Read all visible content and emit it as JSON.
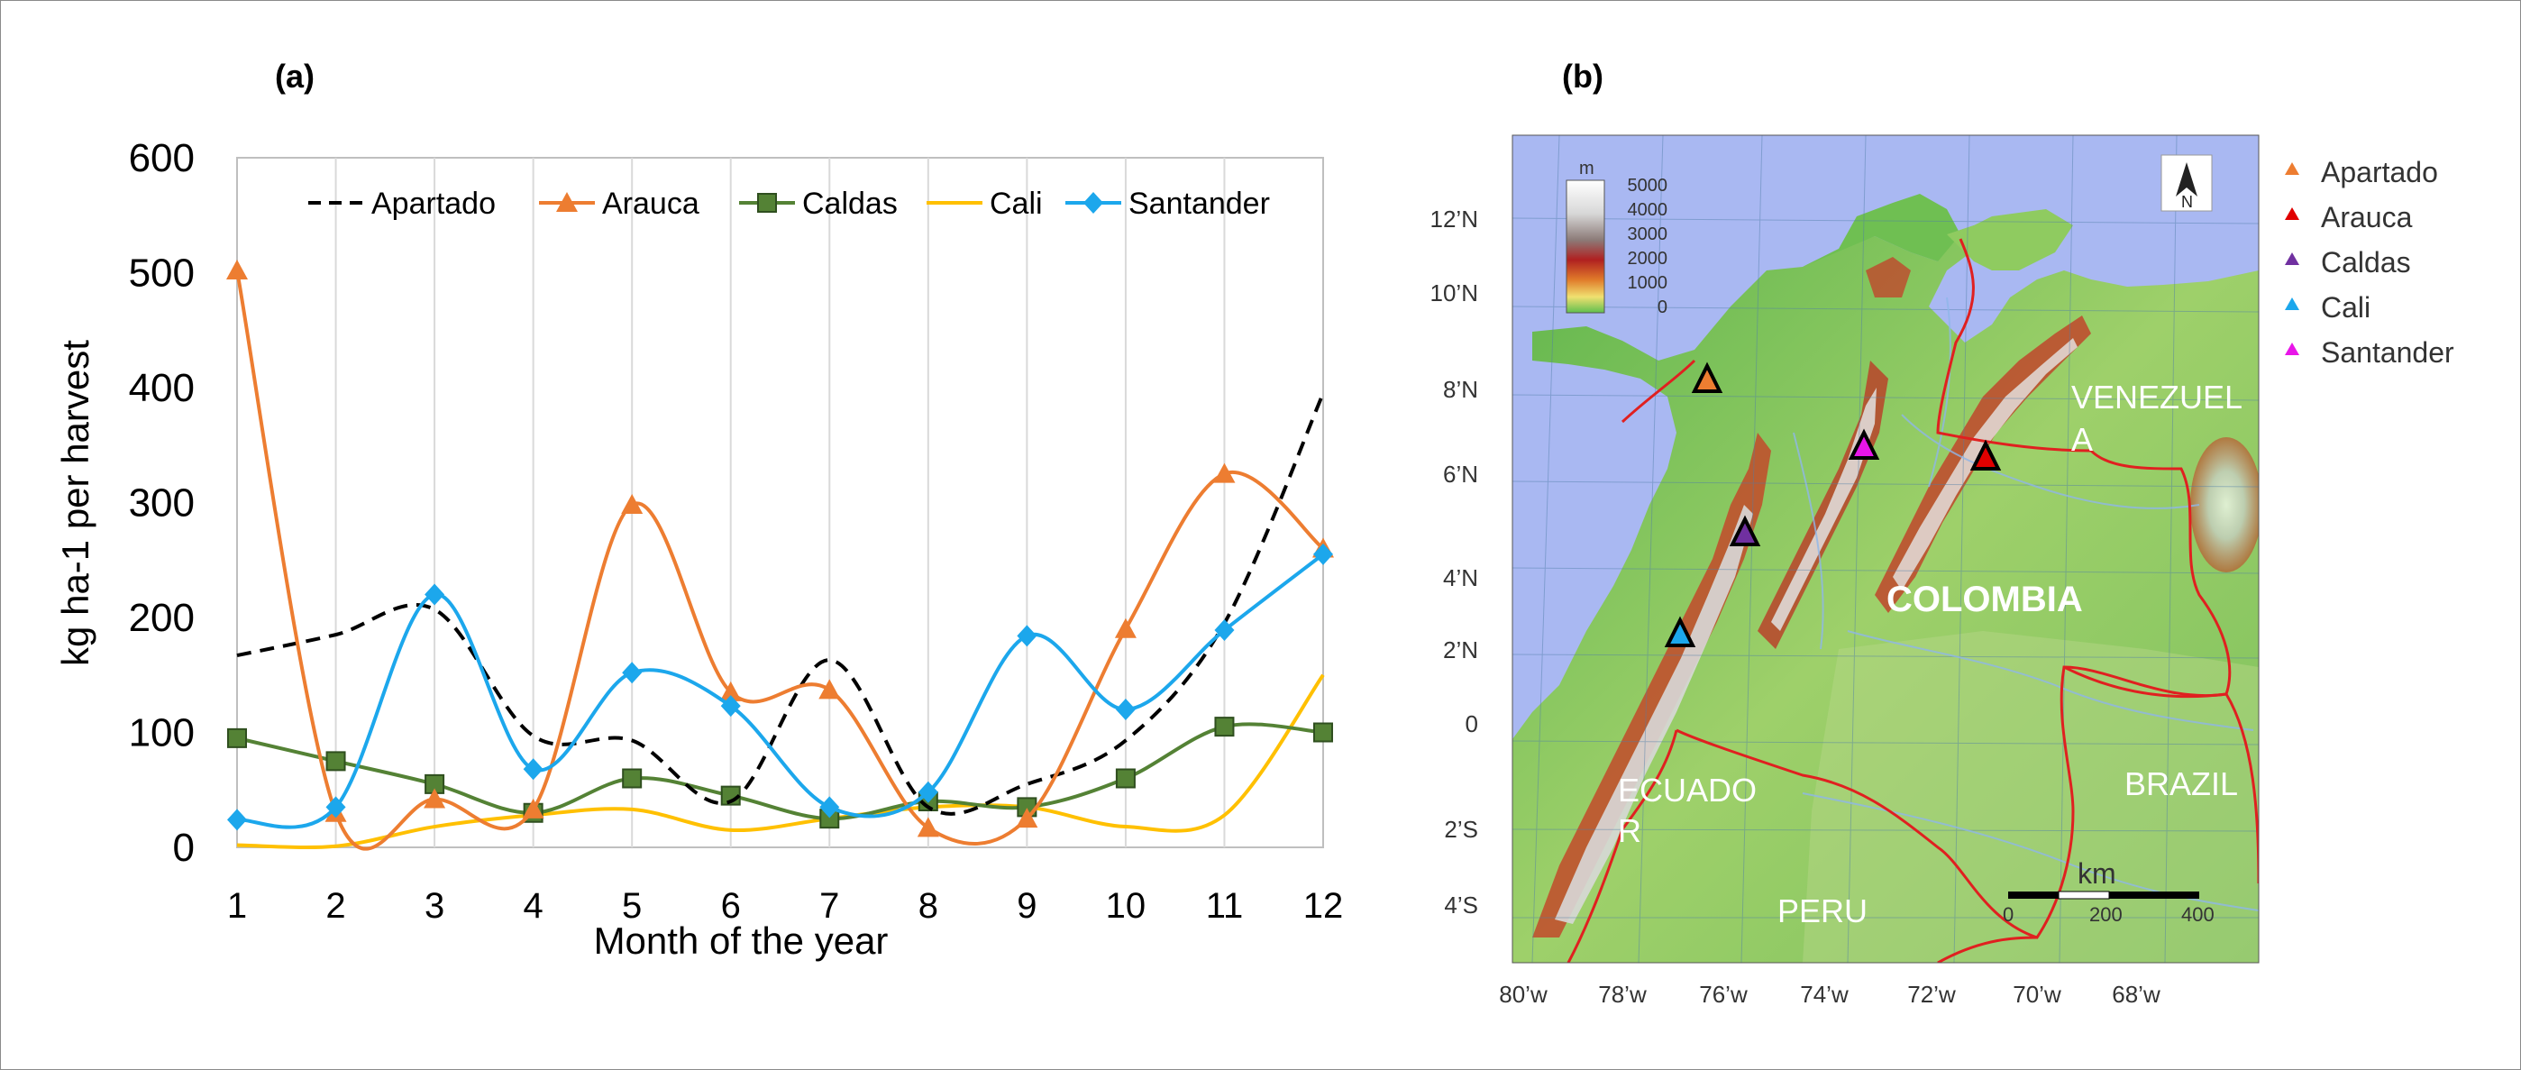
{
  "panel_a_label": "(a)",
  "panel_b_label": "(b)",
  "chart_data": {
    "type": "line",
    "title": "",
    "xlabel": "Month of the year",
    "ylabel": "kg ha-1 per harvest",
    "xlim": [
      1,
      12
    ],
    "ylim": [
      0,
      600
    ],
    "x": [
      1,
      2,
      3,
      4,
      5,
      6,
      7,
      8,
      9,
      10,
      11,
      12
    ],
    "x_ticks": [
      "1",
      "2",
      "3",
      "4",
      "5",
      "6",
      "7",
      "8",
      "9",
      "10",
      "11",
      "12"
    ],
    "y_ticks": [
      "0",
      "100",
      "200",
      "300",
      "400",
      "500",
      "600"
    ],
    "grid": "vertical",
    "legend_position": "top",
    "series": [
      {
        "name": "Apartado",
        "color": "#000000",
        "dash": "dashed",
        "marker": "none",
        "values": [
          167,
          185,
          207,
          97,
          93,
          40,
          163,
          35,
          55,
          93,
          195,
          395
        ]
      },
      {
        "name": "Arauca",
        "color": "#ED7D31",
        "dash": "solid",
        "marker": "triangle",
        "values": [
          502,
          30,
          42,
          33,
          298,
          135,
          137,
          17,
          25,
          190,
          325,
          260
        ]
      },
      {
        "name": "Caldas",
        "color": "#548235",
        "dash": "solid",
        "marker": "square",
        "values": [
          95,
          75,
          55,
          30,
          60,
          45,
          25,
          40,
          35,
          60,
          105,
          100
        ]
      },
      {
        "name": "Cali",
        "color": "#FFC000",
        "dash": "solid",
        "marker": "none",
        "values": [
          2,
          1,
          18,
          28,
          33,
          15,
          25,
          35,
          35,
          18,
          28,
          150
        ]
      },
      {
        "name": "Santander",
        "color": "#1CA7EC",
        "dash": "solid",
        "marker": "diamond",
        "values": [
          24,
          35,
          220,
          68,
          152,
          123,
          35,
          48,
          184,
          120,
          189,
          255
        ]
      }
    ]
  },
  "map": {
    "lat_ticks": [
      "12’N",
      "10’N",
      "8’N",
      "6’N",
      "4’N",
      "2’N",
      "0",
      "2’S",
      "4’S"
    ],
    "lon_ticks": [
      "80’w",
      "78’w",
      "76’w",
      "74’w",
      "72’w",
      "70’w",
      "68’w"
    ],
    "countries": {
      "colombia": "COLOMBIA",
      "venezuela_1": "VENEZUEL",
      "venezuela_2": "A",
      "ecuador_1": "ECUADO",
      "ecuador_2": "R",
      "peru": "PERU",
      "brazil": "BRAZIL"
    },
    "elevation_legend": {
      "unit": "m",
      "labels": [
        "5000",
        "4000",
        "3000",
        "2000",
        "1000",
        "0"
      ]
    },
    "north_label": "N",
    "scale_bar": {
      "unit": "km",
      "labels": [
        "0",
        "200",
        "400"
      ]
    },
    "sites": [
      {
        "name": "Apartado",
        "color": "#ED7D31"
      },
      {
        "name": "Arauca",
        "color": "#E00000"
      },
      {
        "name": "Caldas",
        "color": "#7030A0"
      },
      {
        "name": "Cali",
        "color": "#1CA7EC"
      },
      {
        "name": "Santander",
        "color": "#E815E8"
      }
    ]
  }
}
